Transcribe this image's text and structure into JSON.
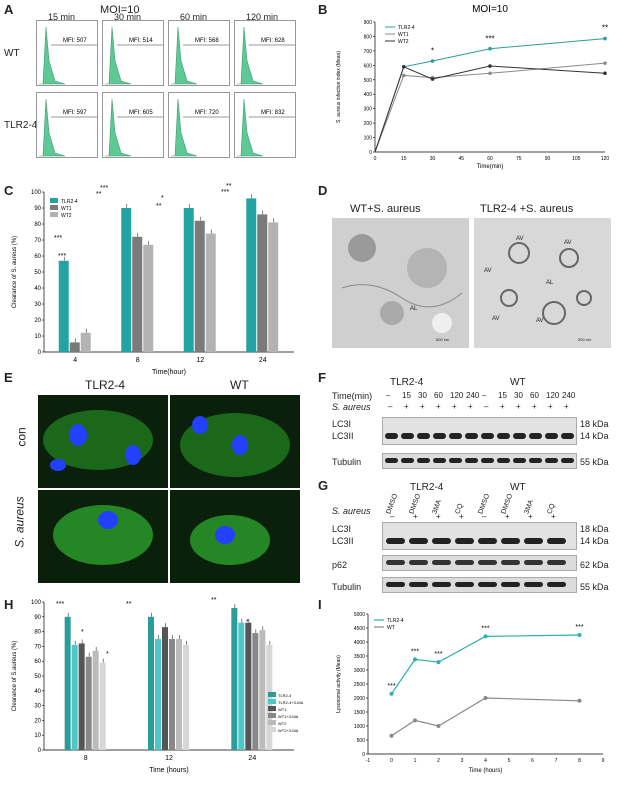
{
  "panels": {
    "A": "A",
    "B": "B",
    "C": "C",
    "D": "D",
    "E": "E",
    "F": "F",
    "G": "G",
    "H": "H",
    "I": "I"
  },
  "panelA": {
    "moi": "MOI=10",
    "times": [
      "15 min",
      "30 min",
      "60 min",
      "120 min"
    ],
    "rows": [
      {
        "label": "WT",
        "mfi": [
          "MFI: 507",
          "MFI: 514",
          "MFI: 568",
          "MFI: 628"
        ]
      },
      {
        "label": "TLR2-4",
        "mfi": [
          "MFI: 597",
          "MFI: 605",
          "MFI: 720",
          "MFI: 832"
        ]
      }
    ],
    "fill_color": "#5fc996"
  },
  "chart_data": [
    {
      "id": "B",
      "type": "line",
      "title": "MOI=10",
      "xlabel": "Time(min)",
      "ylabel": "S. aureus infection index (Mean)",
      "xlim": [
        0,
        120
      ],
      "ylim": [
        0,
        900
      ],
      "xticks": [
        0,
        15,
        30,
        45,
        60,
        75,
        90,
        105,
        120
      ],
      "yticks": [
        0,
        100,
        200,
        300,
        400,
        500,
        600,
        700,
        800,
        900
      ],
      "x": [
        15,
        30,
        60,
        120
      ],
      "series": [
        {
          "name": "TLR2-4",
          "values": [
            590,
            630,
            715,
            785
          ],
          "color": "#2a9c9c"
        },
        {
          "name": "WT1",
          "values": [
            530,
            515,
            545,
            615
          ],
          "color": "#8a8a8a"
        },
        {
          "name": "WT2",
          "values": [
            590,
            505,
            595,
            545
          ],
          "color": "#333333"
        }
      ],
      "annotations": [
        "*",
        "***",
        "**"
      ],
      "legend": "top-left"
    },
    {
      "id": "C",
      "type": "bar",
      "xlabel": "Time(hour)",
      "ylabel": "Clearance of S. aureus (%)",
      "ylim": [
        0,
        100
      ],
      "yticks": [
        0,
        10,
        20,
        30,
        40,
        50,
        60,
        70,
        80,
        90,
        100
      ],
      "categories": [
        "4",
        "8",
        "12",
        "24"
      ],
      "series": [
        {
          "name": "TLR2-4",
          "values": [
            57,
            90,
            90,
            96
          ],
          "color": "#24a3a3"
        },
        {
          "name": "WT1",
          "values": [
            6,
            72,
            82,
            86
          ],
          "color": "#7a7a7a"
        },
        {
          "name": "WT2",
          "values": [
            12,
            67,
            74,
            81
          ],
          "color": "#b3b3b3"
        }
      ],
      "annotations": [
        "***",
        "***",
        "***",
        "**",
        "*",
        "**",
        "**",
        "***"
      ],
      "legend": "top-left"
    },
    {
      "id": "H",
      "type": "bar",
      "xlabel": "Time (hours)",
      "ylabel": "Clearance of S.aureus (%)",
      "ylim": [
        0,
        100
      ],
      "yticks": [
        0,
        10,
        20,
        30,
        40,
        50,
        60,
        70,
        80,
        90,
        100
      ],
      "categories": [
        "8",
        "12",
        "24"
      ],
      "series": [
        {
          "name": "TLR2-4",
          "values": [
            90,
            90,
            96
          ],
          "color": "#2a9c9c"
        },
        {
          "name": "TLR2-4+3-MA",
          "values": [
            71,
            75,
            86
          ],
          "color": "#4dc7c7"
        },
        {
          "name": "WT1",
          "values": [
            72,
            83,
            86
          ],
          "color": "#555555"
        },
        {
          "name": "WT1+3-MA",
          "values": [
            63,
            75,
            79
          ],
          "color": "#888888"
        },
        {
          "name": "WT2",
          "values": [
            67,
            75,
            81
          ],
          "color": "#bbbbbb"
        },
        {
          "name": "WT2+3-MA",
          "values": [
            59,
            71,
            71
          ],
          "color": "#d6d6d6"
        }
      ],
      "annotations": [
        "***",
        "*",
        "*",
        "**",
        "**",
        "*"
      ],
      "legend": "bottom-right"
    },
    {
      "id": "I",
      "type": "line",
      "xlabel": "Time (hours)",
      "ylabel": "Lysosomal activity (Mean)",
      "xlim": [
        -1,
        9
      ],
      "ylim": [
        0,
        5000
      ],
      "xticks": [
        -1,
        0,
        1,
        2,
        3,
        4,
        5,
        6,
        7,
        8,
        9
      ],
      "yticks": [
        0,
        500,
        1000,
        1500,
        2000,
        2500,
        3000,
        3500,
        4000,
        4500,
        5000
      ],
      "x": [
        0,
        1,
        2,
        4,
        8
      ],
      "series": [
        {
          "name": "TLR2-4",
          "values": [
            2150,
            3380,
            3280,
            4200,
            4250
          ],
          "color": "#2ab0b0"
        },
        {
          "name": "WT",
          "values": [
            650,
            1200,
            1000,
            2000,
            1900
          ],
          "color": "#888888"
        }
      ],
      "annotations": [
        "***",
        "***",
        "***",
        "***",
        "***"
      ],
      "legend": "top-left"
    }
  ],
  "panelD": {
    "left": "WT+S. aureus",
    "right": "TLR2-4 +S. aureus",
    "al": "AL",
    "av": "AV",
    "scale": "500 nm"
  },
  "panelE": {
    "cols": [
      "TLR2-4",
      "WT"
    ],
    "rows": [
      "con",
      "S. aureus"
    ]
  },
  "panelF": {
    "groups": [
      "TLR2-4",
      "WT"
    ],
    "time_label": "Time(min)",
    "times": [
      "–",
      "15",
      "30",
      "60",
      "120",
      "240",
      "–",
      "15",
      "30",
      "60",
      "120",
      "240"
    ],
    "sa_label": "S. aureus",
    "sa": [
      "–",
      "+",
      "+",
      "+",
      "+",
      "+",
      "–",
      "+",
      "+",
      "+",
      "+",
      "+"
    ],
    "bands": [
      "LC3I",
      "LC3II",
      "Tubulin"
    ],
    "kda": [
      "18 kDa",
      "14 kDa",
      "55 kDa"
    ]
  },
  "panelG": {
    "groups": [
      "TLR2-4",
      "WT"
    ],
    "sa_label": "S. aureus",
    "treat": [
      "DMSO",
      "DMSO",
      "3MA",
      "CQ",
      "DMSO",
      "DMSO",
      "3MA",
      "CQ"
    ],
    "sa": [
      "–",
      "+",
      "+",
      "+",
      "–",
      "+",
      "+",
      "+"
    ],
    "bands": [
      "LC3I",
      "LC3II",
      "p62",
      "Tubulin"
    ],
    "kda": [
      "18 kDa",
      "14 kDa",
      "62 kDa",
      "55 kDa"
    ]
  }
}
